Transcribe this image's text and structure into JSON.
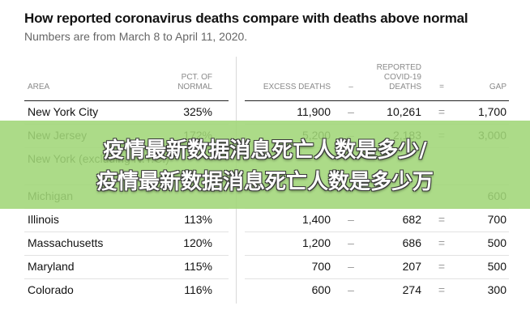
{
  "title": "How reported coronavirus deaths compare with deaths above normal",
  "subtitle": "Numbers are from March 8 to April 11, 2020.",
  "headers": {
    "area": "AREA",
    "pct_normal": [
      "PCT. OF",
      "NORMAL"
    ],
    "excess": "EXCESS DEATHS",
    "minus": "–",
    "reported": [
      "REPORTED",
      "COVID-19",
      "DEATHS"
    ],
    "equals": "=",
    "gap": "GAP"
  },
  "rows": [
    {
      "area": "New York City",
      "pct": "325%",
      "excess": "11,900",
      "op1": "–",
      "reported": "10,261",
      "op2": "=",
      "gap": "1,700"
    },
    {
      "area": "New Jersey",
      "pct": "172%",
      "excess": "5,200",
      "op1": "–",
      "reported": "2,183",
      "op2": "=",
      "gap": "3,000"
    },
    {
      "area": "New York (excluding N.Y.C.)",
      "pct": "",
      "excess": "",
      "op1": "",
      "reported": "",
      "op2": "",
      "gap": ""
    },
    {
      "area": "Michigan",
      "pct": "",
      "excess": "",
      "op1": "",
      "reported": "",
      "op2": "",
      "gap": "600"
    },
    {
      "area": "Illinois",
      "pct": "113%",
      "excess": "1,400",
      "op1": "–",
      "reported": "682",
      "op2": "=",
      "gap": "700"
    },
    {
      "area": "Massachusetts",
      "pct": "120%",
      "excess": "1,200",
      "op1": "–",
      "reported": "686",
      "op2": "=",
      "gap": "500"
    },
    {
      "area": "Maryland",
      "pct": "115%",
      "excess": "700",
      "op1": "–",
      "reported": "207",
      "op2": "=",
      "gap": "500"
    },
    {
      "area": "Colorado",
      "pct": "116%",
      "excess": "600",
      "op1": "–",
      "reported": "274",
      "op2": "=",
      "gap": "300"
    }
  ],
  "banner": {
    "line1": "疫情最新数据消息死亡人数是多少/",
    "line2": "疫情最新数据消息死亡人数是多少万"
  }
}
